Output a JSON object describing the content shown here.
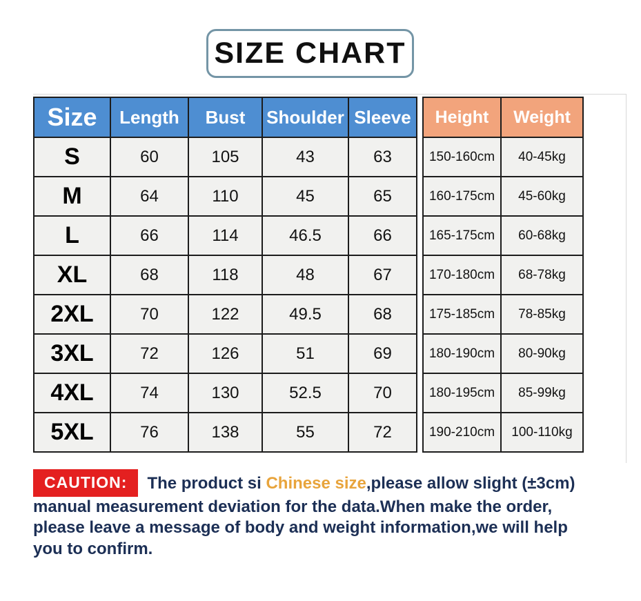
{
  "title": "SIZE CHART",
  "chart_data": {
    "type": "table",
    "title": "SIZE CHART",
    "columns": [
      "Size",
      "Length",
      "Bust",
      "Shoulder",
      "Sleeve",
      "Height",
      "Weight"
    ],
    "rows": [
      [
        "S",
        "60",
        "105",
        "43",
        "63",
        "150-160cm",
        "40-45kg"
      ],
      [
        "M",
        "64",
        "110",
        "45",
        "65",
        "160-175cm",
        "45-60kg"
      ],
      [
        "L",
        "66",
        "114",
        "46.5",
        "66",
        "165-175cm",
        "60-68kg"
      ],
      [
        "XL",
        "68",
        "118",
        "48",
        "67",
        "170-180cm",
        "68-78kg"
      ],
      [
        "2XL",
        "70",
        "122",
        "49.5",
        "68",
        "175-185cm",
        "78-85kg"
      ],
      [
        "3XL",
        "72",
        "126",
        "51",
        "69",
        "180-190cm",
        "80-90kg"
      ],
      [
        "4XL",
        "74",
        "130",
        "52.5",
        "70",
        "180-195cm",
        "85-99kg"
      ],
      [
        "5XL",
        "76",
        "138",
        "55",
        "72",
        "190-210cm",
        "100-110kg"
      ]
    ],
    "layout_hints": {
      "header_group_blue_columns": [
        "Size",
        "Length",
        "Bust",
        "Shoulder",
        "Sleeve"
      ],
      "header_group_orange_columns": [
        "Height",
        "Weight"
      ],
      "grid": "on"
    }
  },
  "caution": {
    "label": "CAUTION:",
    "line1_before": "The product si ",
    "line1_highlight": "Chinese size",
    "line1_after": ",please allow slight (±3cm)",
    "line2": "manual measurement deviation for the data.When make the order,",
    "line3": "please leave a message of body and weight information,we will help",
    "line4": "you to confirm."
  },
  "colors": {
    "header_blue": "#4e8ed2",
    "header_orange": "#f2a47c",
    "label_red": "#e42020",
    "body_text_navy": "#1c2f55",
    "highlight_gold": "#e8a43c",
    "cell_bg": "#f1f1ef",
    "table_border": "#1c1c1c",
    "title_border": "#7495a6"
  }
}
